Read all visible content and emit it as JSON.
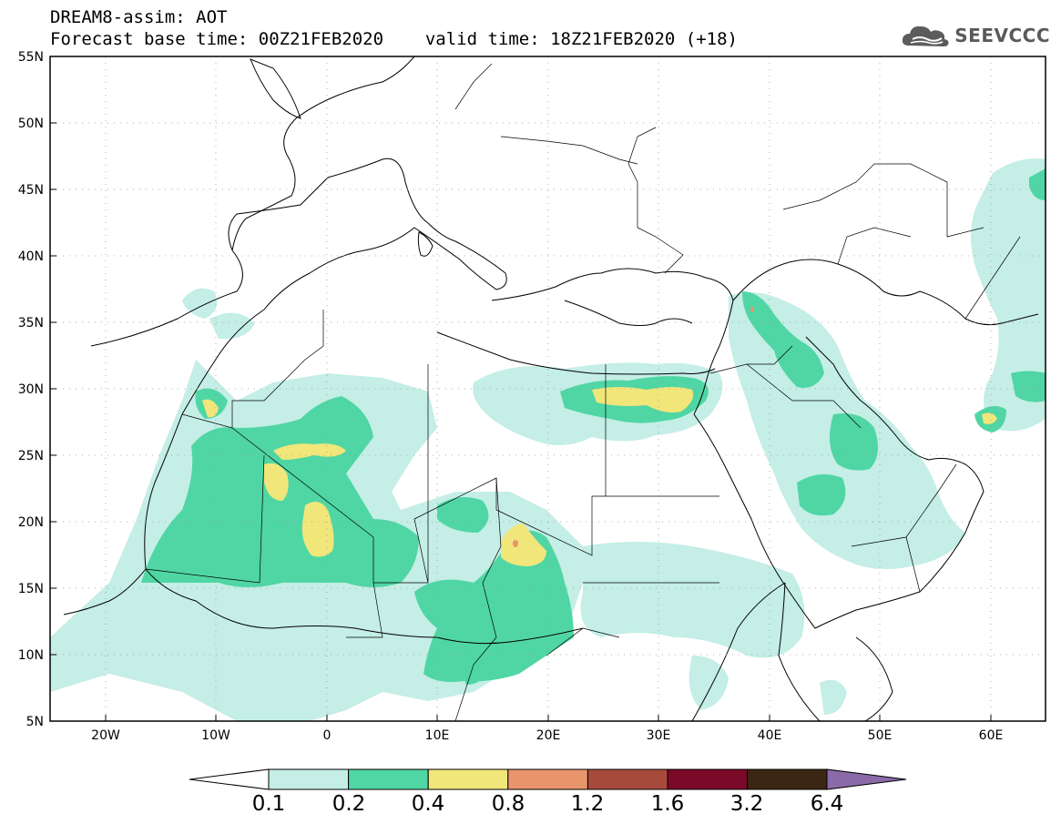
{
  "header": {
    "line1": "DREAM8-assim: AOT",
    "line2_left": "Forecast base time: 00Z21FEB2020",
    "line2_right": "valid time: 18Z21FEB2020 (+18)"
  },
  "logo": {
    "text": "SEEVCCC",
    "icon": "cloud-icon"
  },
  "map": {
    "lat_labels": [
      "55N",
      "50N",
      "45N",
      "40N",
      "35N",
      "30N",
      "25N",
      "20N",
      "15N",
      "10N",
      "5N"
    ],
    "lon_labels": [
      "20W",
      "10W",
      "0",
      "10E",
      "20E",
      "30E",
      "40E",
      "50E",
      "60E"
    ],
    "extent": {
      "lon_min": -25,
      "lon_max": 65,
      "lat_min": 5,
      "lat_max": 55
    }
  },
  "colorbar": {
    "labels": [
      "0.1",
      "0.2",
      "0.4",
      "0.8",
      "1.2",
      "1.6",
      "3.2",
      "6.4"
    ],
    "colors": [
      "#c4eee6",
      "#4fd6a4",
      "#f1e67a",
      "#e9956c",
      "#a74a3d",
      "#7a0a28",
      "#3b2614",
      "#8a6aa8"
    ]
  }
}
